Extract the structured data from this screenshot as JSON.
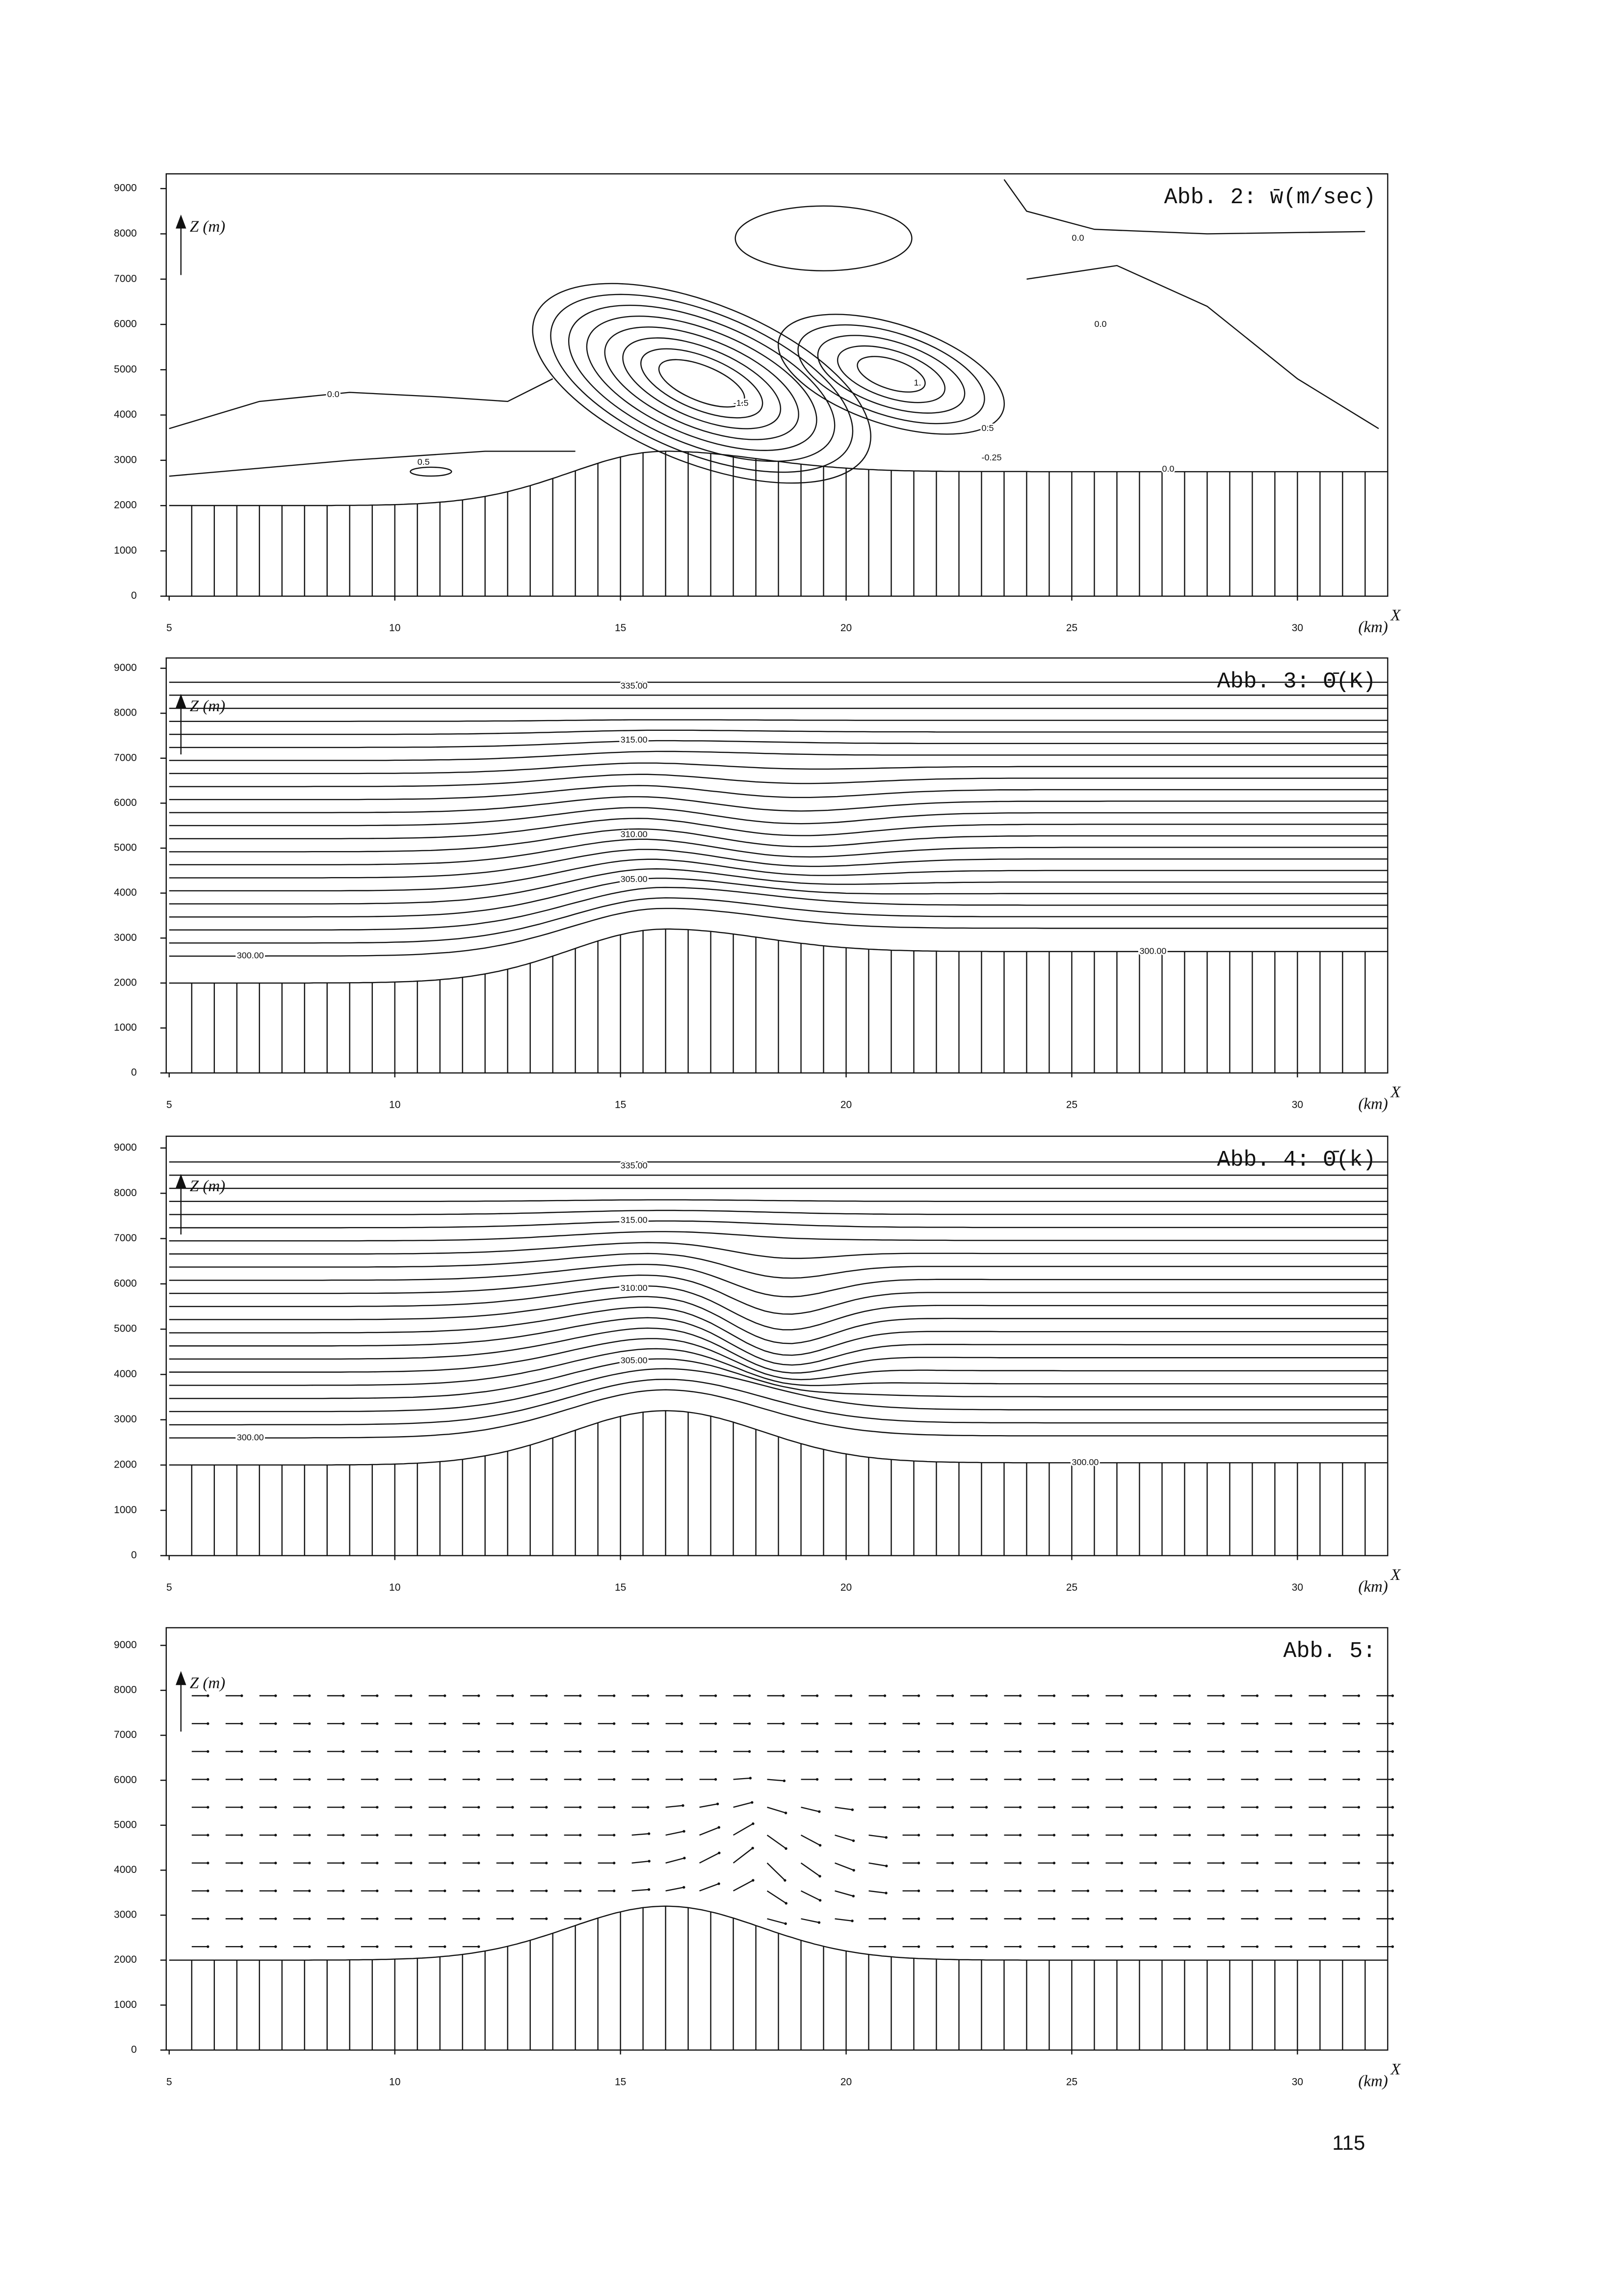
{
  "chart_data": [
    {
      "type": "contour",
      "title": "Abb. 2: w̄(m/sec)",
      "ylabel": "Z (m)",
      "xlabel": "(km)",
      "xaxis_name": "X",
      "xlim": [
        5,
        32
      ],
      "ylim": [
        0,
        9000
      ],
      "xticks": [
        5,
        10,
        15,
        20,
        25,
        30
      ],
      "yticks": [
        0,
        1000,
        2000,
        3000,
        4000,
        5000,
        6000,
        7000,
        8000,
        9000
      ],
      "annotations": [
        "0.0",
        "0.0",
        "0.0",
        "-1.5",
        "1.",
        "0.5",
        "0.5",
        "-0.25",
        "0.0"
      ]
    },
    {
      "type": "isentrope",
      "title": "Abb. 3: Θ̄(K)",
      "ylabel": "Z (m)",
      "xlabel": "(km)",
      "xaxis_name": "X",
      "xlim": [
        5,
        32
      ],
      "ylim": [
        0,
        9000
      ],
      "xticks": [
        5,
        10,
        15,
        20,
        25,
        30
      ],
      "yticks": [
        0,
        1000,
        2000,
        3000,
        4000,
        5000,
        6000,
        7000,
        8000,
        9000
      ],
      "annotations": [
        "335.00",
        "315.00",
        "310.00",
        "305.00",
        "300.00",
        "300.00"
      ]
    },
    {
      "type": "isentrope",
      "title": "Abb. 4: Θ̄(k)",
      "ylabel": "Z (m)",
      "xlabel": "(km)",
      "xaxis_name": "X",
      "xlim": [
        5,
        32
      ],
      "ylim": [
        0,
        9000
      ],
      "xticks": [
        5,
        10,
        15,
        20,
        25,
        30
      ],
      "yticks": [
        0,
        1000,
        2000,
        3000,
        4000,
        5000,
        6000,
        7000,
        8000,
        9000
      ],
      "annotations": [
        "335.00",
        "315.00",
        "310.00",
        "305.00",
        "300.00",
        "300.00"
      ]
    },
    {
      "type": "vector",
      "title": "Abb. 5:",
      "ylabel": "Z (m)",
      "xlabel": "(km)",
      "xaxis_name": "X",
      "xlim": [
        5,
        32
      ],
      "ylim": [
        0,
        9000
      ],
      "xticks": [
        5,
        10,
        15,
        20,
        25,
        30
      ],
      "yticks": [
        0,
        1000,
        2000,
        3000,
        4000,
        5000,
        6000,
        7000,
        8000,
        9000
      ],
      "annotations": []
    }
  ],
  "page_number": "115"
}
